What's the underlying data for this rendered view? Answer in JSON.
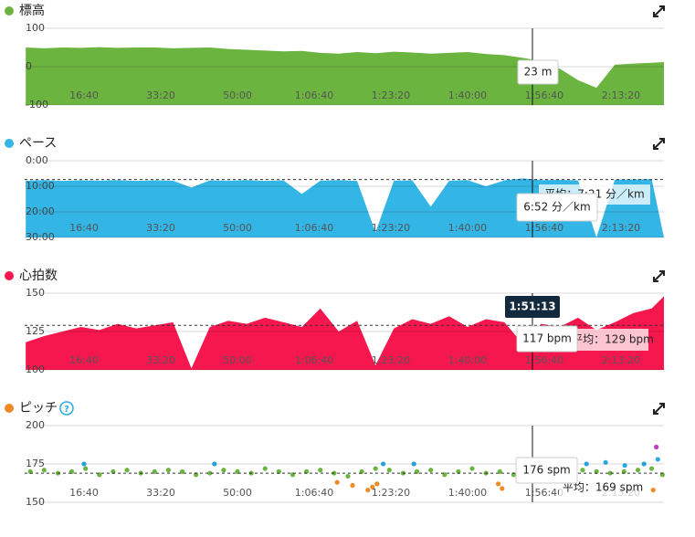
{
  "chart_data": [
    {
      "type": "area",
      "title": "標高",
      "color": "#6ab43f",
      "x": [
        240,
        480,
        720,
        960,
        1200,
        1440,
        1680,
        1920,
        2160,
        2400,
        2640,
        2880,
        3120,
        3360,
        3600,
        3840,
        4080,
        4320,
        4560,
        4800,
        5040,
        5280,
        5520,
        5760,
        6000,
        6240,
        6480,
        6720,
        6960,
        7200,
        7440,
        7680,
        7920,
        8160,
        8400,
        8560
      ],
      "values": [
        50,
        48,
        50,
        49,
        51,
        49,
        50,
        50,
        48,
        49,
        50,
        46,
        44,
        42,
        40,
        41,
        36,
        34,
        38,
        35,
        39,
        37,
        34,
        36,
        38,
        33,
        30,
        23,
        15,
        -5,
        -35,
        -55,
        5,
        8,
        10,
        12
      ],
      "xlim": [
        226,
        8560
      ],
      "ylim": [
        -100,
        100
      ],
      "yticks": [
        -100,
        0,
        100
      ],
      "grid": true,
      "xticks": [
        {
          "value": 1000,
          "label": "16:40"
        },
        {
          "value": 2000,
          "label": "33:20"
        },
        {
          "value": 3000,
          "label": "50:00"
        },
        {
          "value": 4000,
          "label": "1:06:40"
        },
        {
          "value": 5000,
          "label": "1:23:20"
        },
        {
          "value": 6000,
          "label": "1:40:00"
        },
        {
          "value": 7000,
          "label": "1:56:40"
        },
        {
          "value": 8000,
          "label": "2:13:20"
        }
      ],
      "tooltip": "23 m"
    },
    {
      "type": "area",
      "title": "ペース",
      "color": "#33b5e5",
      "x": [
        240,
        480,
        720,
        960,
        1200,
        1440,
        1680,
        1920,
        2160,
        2400,
        2640,
        2880,
        3120,
        3360,
        3600,
        3840,
        4080,
        4320,
        4560,
        4800,
        5040,
        5280,
        5520,
        5760,
        6000,
        6240,
        6480,
        6720,
        6960,
        7200,
        7440,
        7680,
        7920,
        8160,
        8400,
        8560
      ],
      "values": [
        7.8,
        7.6,
        7.9,
        7.7,
        7.8,
        7.6,
        7.9,
        7.7,
        7.8,
        10.5,
        7.7,
        7.8,
        7.6,
        7.9,
        7.7,
        13,
        7.8,
        7.6,
        7.9,
        28,
        7.8,
        7.7,
        18,
        7.8,
        7.6,
        10,
        7.7,
        6.9,
        7.6,
        7.5,
        7.7,
        30,
        7.4,
        7.3,
        7.2,
        30
      ],
      "xlim": [
        226,
        8560
      ],
      "ylim": [
        0,
        30
      ],
      "y_inverted": true,
      "grid": true,
      "yticks": [
        {
          "value": 0,
          "label": "0:00"
        },
        {
          "value": 10,
          "label": "10:00"
        },
        {
          "value": 20,
          "label": "20:00"
        },
        {
          "value": 30,
          "label": "30:00"
        }
      ],
      "xticks": [
        {
          "value": 1000,
          "label": "16:40"
        },
        {
          "value": 2000,
          "label": "33:20"
        },
        {
          "value": 3000,
          "label": "50:00"
        },
        {
          "value": 4000,
          "label": "1:06:40"
        },
        {
          "value": 5000,
          "label": "1:23:20"
        },
        {
          "value": 6000,
          "label": "1:40:00"
        },
        {
          "value": 7000,
          "label": "1:56:40"
        },
        {
          "value": 8000,
          "label": "2:13:20"
        }
      ],
      "average": 7.35,
      "average_label": "平均：7:21 分／km",
      "tooltip": "6:52 分／km"
    },
    {
      "type": "area",
      "title": "心拍数",
      "color": "#f5174d",
      "x": [
        240,
        480,
        720,
        960,
        1200,
        1440,
        1680,
        1920,
        2160,
        2400,
        2640,
        2880,
        3120,
        3360,
        3600,
        3840,
        4080,
        4320,
        4560,
        4800,
        5040,
        5280,
        5520,
        5760,
        6000,
        6240,
        6480,
        6720,
        6960,
        7200,
        7440,
        7680,
        7920,
        8160,
        8400,
        8560
      ],
      "values": [
        118,
        122,
        125,
        128,
        126,
        130,
        127,
        129,
        131,
        101,
        128,
        132,
        130,
        134,
        131,
        128,
        140,
        125,
        132,
        103,
        127,
        133,
        130,
        135,
        128,
        133,
        131,
        117,
        130,
        128,
        134,
        126,
        131,
        137,
        140,
        148
      ],
      "xlim": [
        226,
        8560
      ],
      "ylim": [
        100,
        150
      ],
      "yticks": [
        100,
        125,
        150
      ],
      "grid": true,
      "xticks": [
        {
          "value": 1000,
          "label": "16:40"
        },
        {
          "value": 2000,
          "label": "33:20"
        },
        {
          "value": 3000,
          "label": "50:00"
        },
        {
          "value": 4000,
          "label": "1:06:40"
        },
        {
          "value": 5000,
          "label": "1:23:20"
        },
        {
          "value": 6000,
          "label": "1:40:00"
        },
        {
          "value": 7000,
          "label": "1:56:40"
        },
        {
          "value": 8000,
          "label": "2:13:20"
        }
      ],
      "average": 129,
      "average_label": "平均：129 bpm",
      "cursor_time": "1:51:13",
      "tooltip": "117 bpm"
    },
    {
      "type": "scatter",
      "title": "ピッチ",
      "color": "#f08a24",
      "help_icon": "?",
      "series": [
        {
          "color": "#6ab43f",
          "x": [
            300,
            480,
            660,
            840,
            1020,
            1200,
            1380,
            1560,
            1740,
            1920,
            2100,
            2280,
            2460,
            2640,
            2820,
            3000,
            3180,
            3360,
            3540,
            3720,
            3900,
            4080,
            4260,
            4440,
            4620,
            4800,
            4980,
            5160,
            5340,
            5520,
            5700,
            5880,
            6060,
            6240,
            6420,
            6600,
            6780,
            6960,
            7140,
            7320,
            7500,
            7680,
            7860,
            8040,
            8220,
            8400,
            8540
          ],
          "values": [
            170,
            171,
            169,
            170,
            172,
            168,
            170,
            171,
            169,
            170,
            171,
            170,
            168,
            169,
            171,
            170,
            169,
            172,
            170,
            168,
            170,
            171,
            169,
            167,
            170,
            172,
            171,
            169,
            170,
            171,
            168,
            170,
            172,
            169,
            170,
            168,
            171,
            170,
            169,
            170,
            171,
            170,
            169,
            170,
            171,
            172,
            168
          ]
        },
        {
          "color": "#29abe2",
          "x": [
            1000,
            2700,
            4900,
            5300,
            7050,
            7300,
            7550,
            7800,
            8050,
            8300,
            8480
          ],
          "values": [
            175,
            175,
            175,
            175,
            177,
            176,
            175,
            176,
            174,
            175,
            178
          ]
        },
        {
          "color": "#f08a24",
          "x": [
            4300,
            4500,
            4700,
            4760,
            4820,
            6400,
            6450,
            8420
          ],
          "values": [
            163,
            161,
            158,
            160,
            162,
            162,
            159,
            158
          ]
        },
        {
          "color": "#c03fc0",
          "x": [
            8460
          ],
          "values": [
            186
          ]
        }
      ],
      "xlim": [
        226,
        8560
      ],
      "ylim": [
        150,
        200
      ],
      "yticks": [
        150,
        175,
        200
      ],
      "grid": true,
      "xticks": [
        {
          "value": 1000,
          "label": "16:40"
        },
        {
          "value": 2000,
          "label": "33:20"
        },
        {
          "value": 3000,
          "label": "50:00"
        },
        {
          "value": 4000,
          "label": "1:06:40"
        },
        {
          "value": 5000,
          "label": "1:23:20"
        },
        {
          "value": 6000,
          "label": "1:40:00"
        },
        {
          "value": 7000,
          "label": "1:56:40"
        },
        {
          "value": 8000,
          "label": "2:13:20"
        }
      ],
      "average": 169,
      "average_label": "平均：169 spm",
      "tooltip": "176 spm"
    }
  ]
}
